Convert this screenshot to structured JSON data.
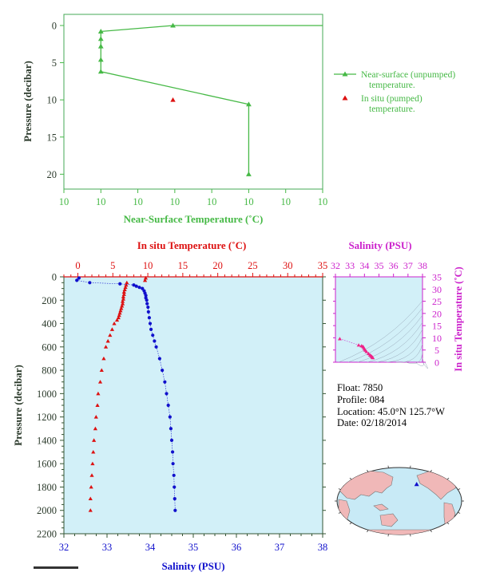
{
  "colors": {
    "green": "#46b946",
    "red": "#dd1111",
    "blue": "#1010cc",
    "magenta": "#cc22cc",
    "plot_bg": "#d2f0f8",
    "axis_text": "#2b3a2b",
    "ocean": "#c8eaf6",
    "land": "#f0b8b8"
  },
  "chart_data": [
    {
      "type": "line",
      "xlabel": "Near-Surface Temperature (˚C)",
      "ylabel": "Pressure (decibar)",
      "x_tick_labels": [
        "10",
        "10",
        "10",
        "10",
        "10",
        "10",
        "10",
        "10"
      ],
      "y_ticks": [
        0,
        5,
        10,
        15,
        20
      ],
      "ylim": [
        22,
        -1.5
      ],
      "legend_position": "right",
      "series": [
        {
          "name": "Near-surface (unpumped) temperature.",
          "marker": "triangle",
          "x": [
            2.95,
            1,
            1,
            1,
            1,
            1,
            5,
            5
          ],
          "y": [
            0,
            0.8,
            1.8,
            2.8,
            4.6,
            6.2,
            10.6,
            20
          ]
        },
        {
          "name": "In situ (pumped) temperature.",
          "marker": "triangle",
          "points": [
            {
              "x": 2.95,
              "y": 10
            }
          ]
        }
      ]
    },
    {
      "type": "line",
      "title": "In situ Temperature (˚C)",
      "xlabel": "Salinity (PSU)",
      "ylabel": "Pressure (decibar)",
      "salinity_xlim": [
        32,
        38
      ],
      "salinity_ticks": [
        32,
        33,
        34,
        35,
        36,
        37,
        38
      ],
      "temperature_xlim": [
        -2,
        35
      ],
      "temperature_ticks": [
        0,
        5,
        10,
        15,
        20,
        25,
        30,
        35
      ],
      "ylim": [
        2200,
        0
      ],
      "y_ticks": [
        0,
        200,
        400,
        600,
        800,
        1000,
        1200,
        1400,
        1600,
        1800,
        2000,
        2200
      ],
      "series": [
        {
          "name": "Temperature",
          "axis": "top",
          "pressure": [
            10,
            30,
            50,
            70,
            90,
            110,
            130,
            150,
            170,
            190,
            210,
            230,
            250,
            270,
            290,
            310,
            330,
            350,
            370,
            400,
            450,
            500,
            550,
            600,
            700,
            800,
            900,
            1000,
            1100,
            1200,
            1300,
            1400,
            1500,
            1600,
            1700,
            1800,
            1900,
            2000
          ],
          "temperature": [
            9.7,
            9.6,
            7.0,
            6.9,
            6.8,
            6.7,
            6.6,
            6.6,
            6.5,
            6.5,
            6.4,
            6.4,
            6.3,
            6.2,
            6.1,
            6.0,
            5.9,
            5.8,
            5.6,
            5.2,
            4.9,
            4.6,
            4.3,
            4.0,
            3.7,
            3.4,
            3.2,
            2.9,
            2.8,
            2.6,
            2.5,
            2.3,
            2.2,
            2.1,
            2.0,
            1.9,
            1.8,
            1.8
          ]
        },
        {
          "name": "Salinity",
          "axis": "bottom",
          "pressure": [
            10,
            30,
            50,
            60,
            70,
            80,
            90,
            100,
            120,
            140,
            160,
            180,
            200,
            230,
            260,
            300,
            350,
            400,
            450,
            500,
            550,
            600,
            700,
            800,
            900,
            1000,
            1100,
            1200,
            1300,
            1400,
            1500,
            1600,
            1700,
            1800,
            1900,
            2000
          ],
          "salinity": [
            32.35,
            32.3,
            32.6,
            33.3,
            33.62,
            33.68,
            33.75,
            33.82,
            33.86,
            33.88,
            33.9,
            33.9,
            33.92,
            33.93,
            33.95,
            33.96,
            33.98,
            34.0,
            34.02,
            34.06,
            34.1,
            34.14,
            34.22,
            34.28,
            34.34,
            34.38,
            34.42,
            34.46,
            34.48,
            34.5,
            34.52,
            34.53,
            34.55,
            34.56,
            34.57,
            34.58
          ]
        }
      ]
    },
    {
      "type": "scatter",
      "title": "Salinity (PSU)",
      "ylabel": "In situ Temperature (˚C)",
      "xlim": [
        32,
        38
      ],
      "x_ticks": [
        32,
        33,
        34,
        35,
        36,
        37,
        38
      ],
      "ylim": [
        0,
        35
      ],
      "y_ticks": [
        0,
        5,
        10,
        15,
        20,
        25,
        30,
        35
      ],
      "points": [
        {
          "x": 32.3,
          "y": 9.6
        },
        {
          "x": 33.6,
          "y": 7.0
        },
        {
          "x": 33.8,
          "y": 6.7
        },
        {
          "x": 33.9,
          "y": 6.4
        },
        {
          "x": 33.95,
          "y": 6.0
        },
        {
          "x": 34.0,
          "y": 5.4
        },
        {
          "x": 34.06,
          "y": 4.9
        },
        {
          "x": 34.14,
          "y": 4.3
        },
        {
          "x": 34.28,
          "y": 3.5
        },
        {
          "x": 34.38,
          "y": 2.9
        },
        {
          "x": 34.46,
          "y": 2.6
        },
        {
          "x": 34.52,
          "y": 2.2
        },
        {
          "x": 34.55,
          "y": 2.0
        },
        {
          "x": 34.58,
          "y": 1.8
        }
      ]
    }
  ],
  "info": {
    "float": "Float:  7850",
    "profile": "Profile:  084",
    "location": "Location:  45.0°N  125.7°W",
    "date": "Date:  02/18/2014"
  },
  "map": {
    "marker_lat": 45.0,
    "marker_lon": -125.7
  }
}
